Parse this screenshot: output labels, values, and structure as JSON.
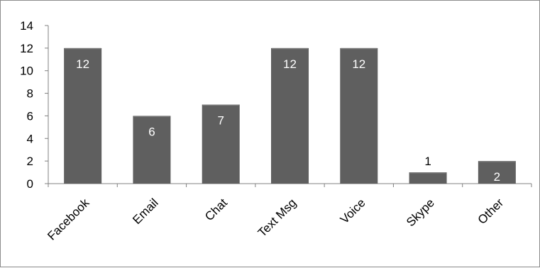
{
  "chart_data": {
    "type": "bar",
    "title": "",
    "xlabel": "",
    "ylabel": "",
    "categories": [
      "Facebook",
      "Email",
      "Chat",
      "Text Msg",
      "Voice",
      "Skype",
      "Other"
    ],
    "values": [
      12,
      6,
      7,
      12,
      12,
      1,
      2
    ],
    "data_labels": [
      "12",
      "6",
      "7",
      "12",
      "12",
      "1",
      "2"
    ],
    "ylim": [
      0,
      14
    ],
    "yticks": [
      0,
      2,
      4,
      6,
      8,
      10,
      12,
      14
    ],
    "grid": false,
    "legend": "none",
    "colors": {
      "bar": "#5f5f5f",
      "bar_highlight": "#7a7a7a",
      "axis": "#808080",
      "label_inside": "#ffffff",
      "label_outside": "#000000"
    }
  }
}
